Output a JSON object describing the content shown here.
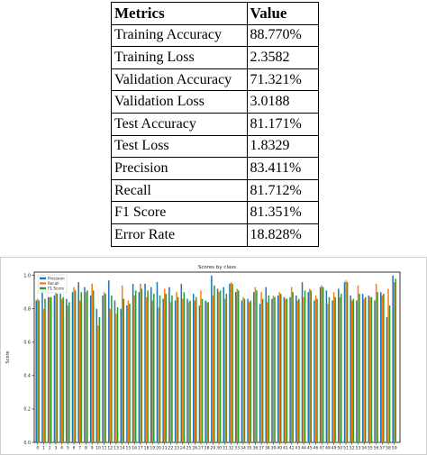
{
  "metrics_table": {
    "header": {
      "metric": "Metrics",
      "value": "Value"
    },
    "rows": [
      {
        "metric": "Training Accuracy",
        "value": "88.770%"
      },
      {
        "metric": "Training Loss",
        "value": "2.3582"
      },
      {
        "metric": "Validation Accuracy",
        "value": "71.321%"
      },
      {
        "metric": "Validation Loss",
        "value": "3.0188"
      },
      {
        "metric": "Test Accuracy",
        "value": "81.171%"
      },
      {
        "metric": "Test Loss",
        "value": "1.8329"
      },
      {
        "metric": "Precision",
        "value": "83.411%"
      },
      {
        "metric": "Recall",
        "value": "81.712%"
      },
      {
        "metric": "F1 Score",
        "value": "81.351%"
      },
      {
        "metric": "Error Rate",
        "value": "18.828%"
      }
    ]
  },
  "chart_data": {
    "type": "bar",
    "title": "Scores by class",
    "xlabel": "",
    "ylabel": "Score",
    "ylim": [
      0,
      1.02
    ],
    "yticks": [
      "0.0",
      "0.2",
      "0.4",
      "0.6",
      "0.8",
      "1.0"
    ],
    "grid": false,
    "legend_position": "top-left",
    "categories": [
      "0",
      "1",
      "2",
      "3",
      "4",
      "5",
      "6",
      "7",
      "8",
      "9",
      "10",
      "11",
      "12",
      "13",
      "14",
      "15",
      "16",
      "17",
      "18",
      "19",
      "20",
      "21",
      "22",
      "23",
      "24",
      "25",
      "26",
      "27",
      "28",
      "29",
      "30",
      "31",
      "32",
      "33",
      "34",
      "35",
      "36",
      "37",
      "38",
      "39",
      "40",
      "41",
      "42",
      "43",
      "44",
      "45",
      "46",
      "47",
      "48",
      "49",
      "50",
      "51",
      "52",
      "53",
      "54",
      "55",
      "56",
      "57",
      "58",
      "59"
    ],
    "series": [
      {
        "name": "Precision",
        "color": "#1f77b4",
        "values": [
          0.85,
          0.93,
          0.87,
          0.88,
          0.89,
          0.86,
          0.9,
          0.96,
          0.93,
          0.88,
          0.8,
          0.88,
          0.97,
          0.85,
          0.8,
          0.82,
          0.95,
          0.9,
          0.95,
          0.93,
          0.96,
          0.86,
          0.93,
          0.85,
          0.95,
          0.86,
          0.89,
          0.82,
          0.85,
          1.0,
          0.92,
          0.93,
          0.95,
          0.9,
          0.85,
          0.86,
          0.9,
          0.83,
          0.93,
          0.86,
          0.88,
          0.87,
          0.87,
          0.88,
          0.96,
          0.9,
          0.85,
          0.93,
          0.91,
          0.85,
          0.92,
          0.96,
          0.88,
          0.85,
          0.89,
          0.88,
          0.85,
          0.9,
          0.75,
          1.0
        ]
      },
      {
        "name": "Recall",
        "color": "#ff7f0e",
        "values": [
          0.86,
          0.8,
          0.87,
          0.9,
          0.86,
          0.82,
          0.93,
          0.85,
          0.9,
          0.95,
          0.7,
          0.9,
          0.8,
          0.77,
          0.94,
          0.85,
          0.88,
          0.95,
          0.87,
          0.85,
          0.81,
          0.92,
          0.84,
          0.9,
          0.86,
          0.84,
          0.85,
          0.91,
          0.84,
          0.88,
          0.9,
          0.86,
          0.96,
          0.92,
          0.87,
          0.84,
          0.93,
          0.9,
          0.84,
          0.88,
          0.9,
          0.86,
          0.93,
          0.85,
          0.87,
          0.92,
          0.88,
          0.94,
          0.83,
          0.9,
          0.87,
          0.97,
          0.85,
          0.94,
          0.86,
          0.87,
          0.95,
          0.88,
          0.92,
          0.96
        ]
      },
      {
        "name": "F1 Score",
        "color": "#2ca02c",
        "values": [
          0.85,
          0.86,
          0.87,
          0.89,
          0.87,
          0.84,
          0.91,
          0.9,
          0.91,
          0.91,
          0.75,
          0.89,
          0.88,
          0.81,
          0.86,
          0.83,
          0.91,
          0.92,
          0.91,
          0.89,
          0.88,
          0.89,
          0.88,
          0.87,
          0.9,
          0.85,
          0.87,
          0.86,
          0.84,
          0.94,
          0.91,
          0.89,
          0.95,
          0.91,
          0.86,
          0.85,
          0.91,
          0.86,
          0.88,
          0.87,
          0.89,
          0.86,
          0.9,
          0.86,
          0.91,
          0.91,
          0.86,
          0.93,
          0.87,
          0.87,
          0.89,
          0.96,
          0.86,
          0.89,
          0.87,
          0.87,
          0.9,
          0.89,
          0.82,
          0.98
        ]
      }
    ]
  }
}
